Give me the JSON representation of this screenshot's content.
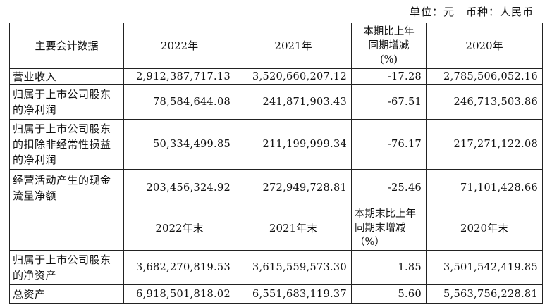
{
  "unit_line": "单位：元　币种：人民币",
  "header1": [
    "主要会计数据",
    "2022年",
    "2021年",
    "本期比上年同期增减(%)",
    "2020年"
  ],
  "header1_change_lines": [
    "本期比上年",
    "同期增减",
    "(%)"
  ],
  "rows1": [
    {
      "label": "营业收入",
      "v2022": "2,912,387,717.13",
      "v2021": "3,520,660,207.12",
      "change": "-17.28",
      "v2020": "2,785,506,052.16"
    },
    {
      "label": "归属于上市公司股东的净利润",
      "v2022": "78,584,644.08",
      "v2021": "241,871,903.43",
      "change": "-67.51",
      "v2020": "246,713,503.86"
    },
    {
      "label": "归属于上市公司股东的扣除非经常性损益的净利润",
      "v2022": "50,334,499.85",
      "v2021": "211,199,999.34",
      "change": "-76.17",
      "v2020": "217,271,122.08"
    },
    {
      "label": "经营活动产生的现金流量净额",
      "v2022": "203,456,324.92",
      "v2021": "272,949,728.81",
      "change": "-25.46",
      "v2020": "71,101,428.66"
    }
  ],
  "header2": [
    "",
    "2022年末",
    "2021年末",
    "本期末比上年同期末增减（%）",
    "2020年末"
  ],
  "rows2": [
    {
      "label": "归属于上市公司股东的净资产",
      "v2022": "3,682,270,819.53",
      "v2021": "3,615,559,573.30",
      "change": "1.85",
      "v2020": "3,501,542,419.85"
    },
    {
      "label": "总资产",
      "v2022": "6,918,501,818.02",
      "v2021": "6,551,683,119.37",
      "change": "5.60",
      "v2020": "5,563,756,228.81"
    }
  ]
}
